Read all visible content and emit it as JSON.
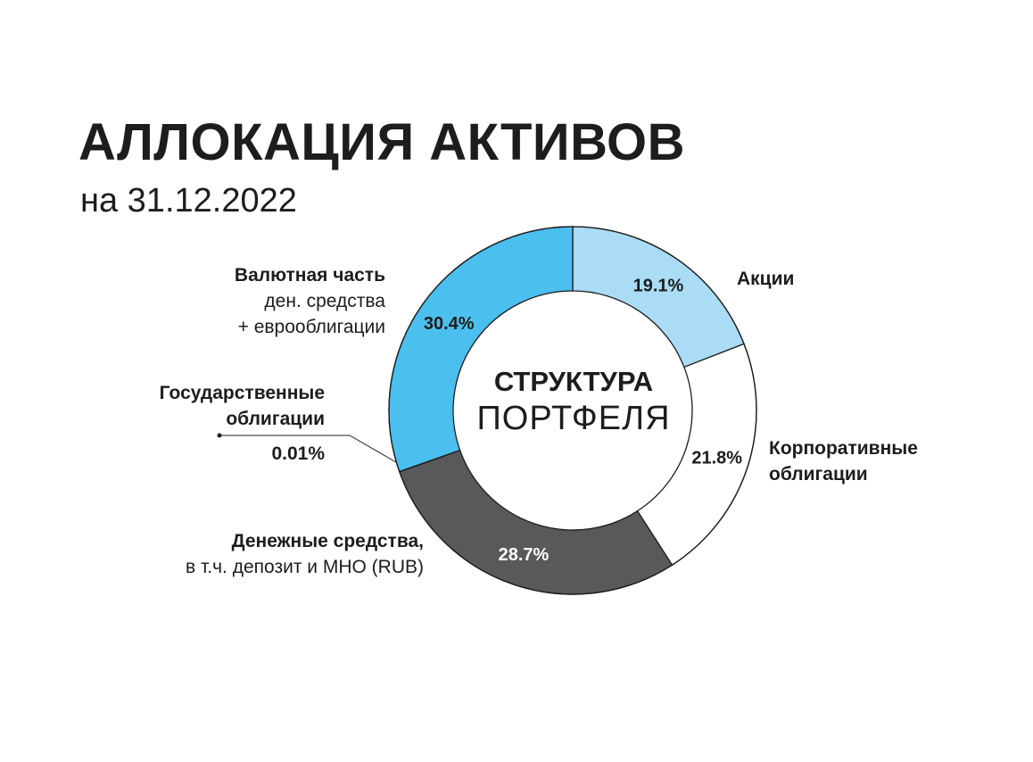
{
  "title": "АЛЛОКАЦИЯ АКТИВОВ",
  "subtitle": "на 31.12.2022",
  "center": {
    "line1": "СТРУКТУРА",
    "line2": "ПОРТФЕЛЯ"
  },
  "colors": {
    "akcii": "#aadcf6",
    "corp": "#ffffff",
    "cash_rub": "#58595b",
    "gov": "#5a5a5a",
    "fx": "#4bbfee",
    "outline": "#1d1d1b"
  },
  "chart_data": {
    "type": "pie",
    "donut": true,
    "slices": [
      {
        "key": "akcii",
        "name": "Акции",
        "value": 19.1,
        "label": "19.1%"
      },
      {
        "key": "corp",
        "name": "Корпоративные облигации",
        "value": 21.8,
        "label": "21.8%"
      },
      {
        "key": "cash_rub",
        "name": "Денежные средства, в т.ч. депозит и МНО (RUB)",
        "value": 28.7,
        "label": "28.7%"
      },
      {
        "key": "gov",
        "name": "Государственные облигации",
        "value": 0.01,
        "label": "0.01%"
      },
      {
        "key": "fx",
        "name": "Валютная часть ден. средства + еврооблигации",
        "value": 30.4,
        "label": "30.4%"
      }
    ]
  },
  "labels": {
    "akcii": {
      "l1": "Акции"
    },
    "corp": {
      "l1": "Корпоративные",
      "l2": "облигации"
    },
    "cash_rub": {
      "l1": "Денежные средства,",
      "l2": "в т.ч. депозит и МНО (RUB)"
    },
    "gov": {
      "l1": "Государственные",
      "l2": "облигации",
      "value": "0.01%"
    },
    "fx": {
      "l1": "Валютная часть",
      "l2": "ден. средства",
      "l3": "+ еврооблигации"
    }
  }
}
